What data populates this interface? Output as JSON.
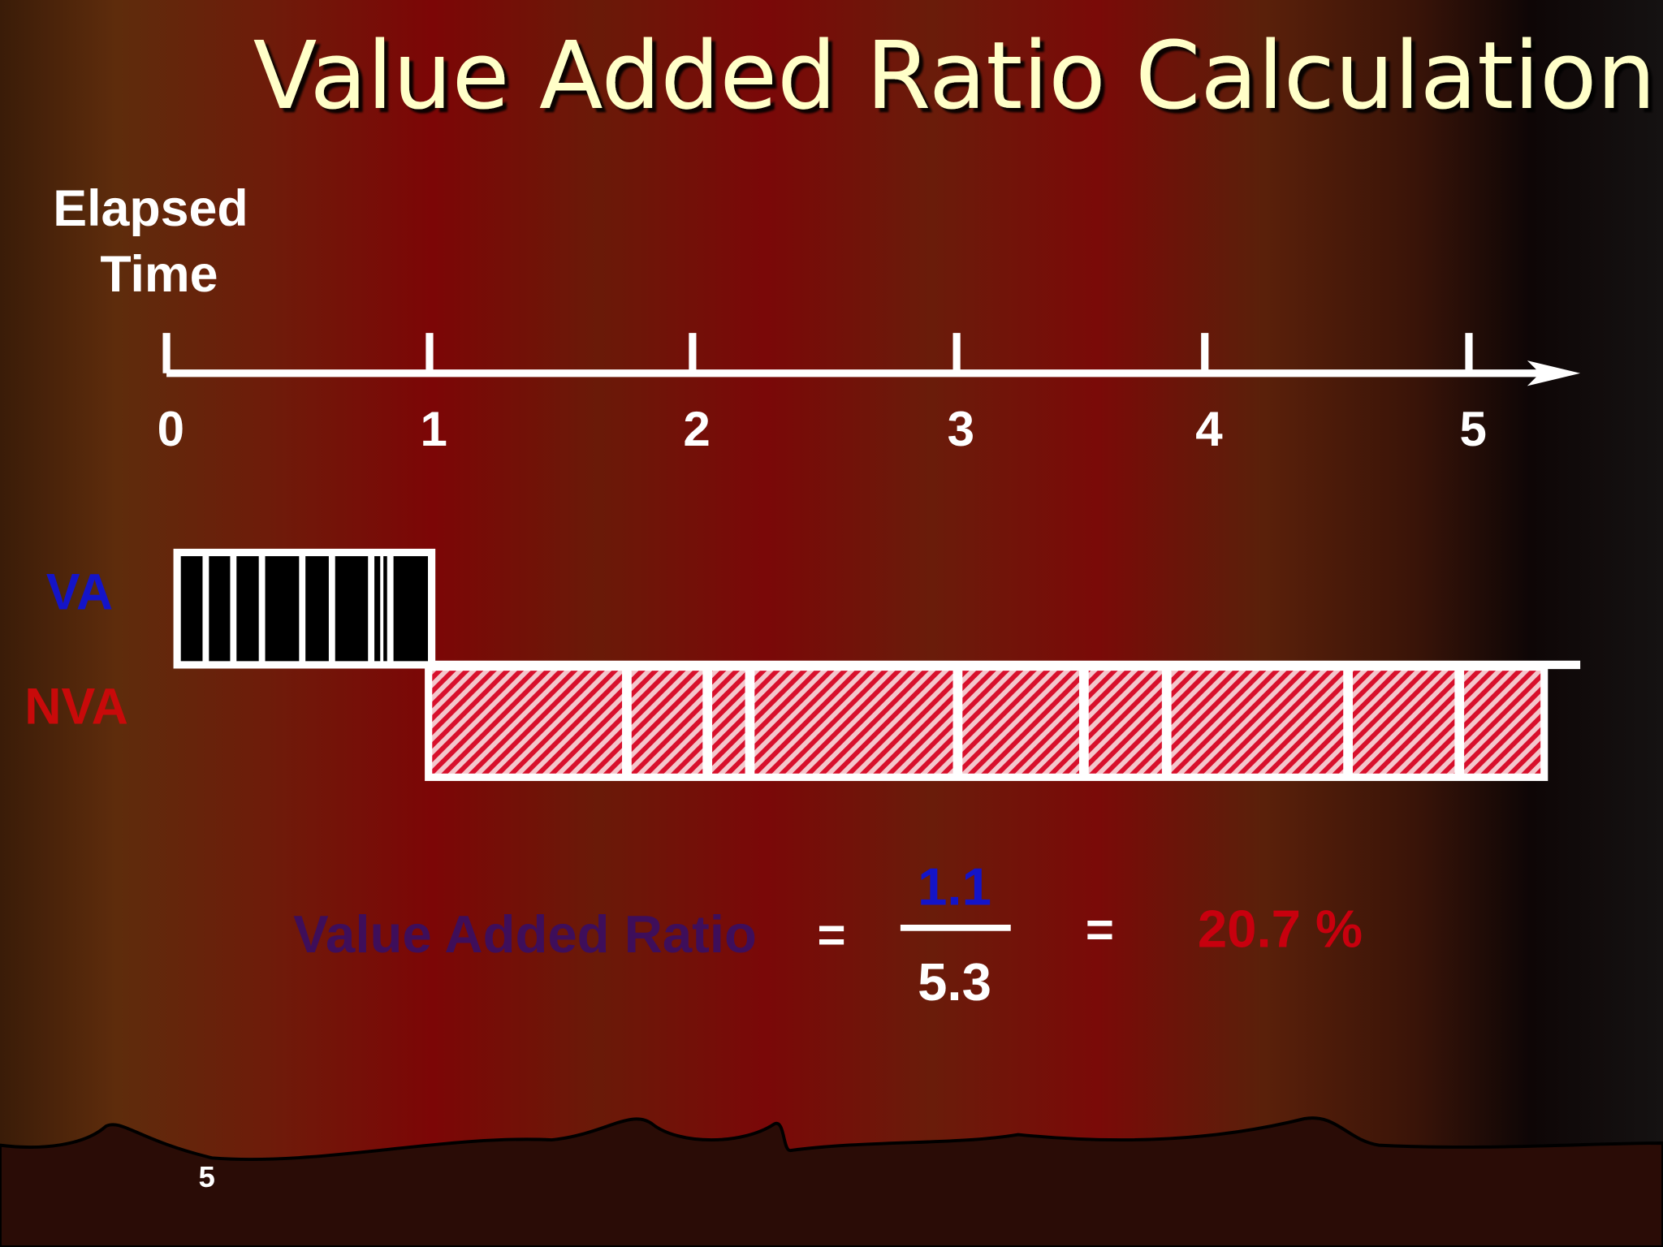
{
  "title": "Value Added Ratio Calculation",
  "timeline": {
    "label": [
      "Elapsed",
      "Time"
    ],
    "ticks": [
      "0",
      "1",
      "2",
      "3",
      "4",
      "5"
    ]
  },
  "bars": {
    "va_label": "VA",
    "nva_label": "NVA"
  },
  "formula": {
    "name": "Value Added Ratio",
    "equals_1": "=",
    "numerator": "1.1",
    "denominator": "5.3",
    "equals_2": "=",
    "result": "20.7 %"
  },
  "page_number": "5"
}
